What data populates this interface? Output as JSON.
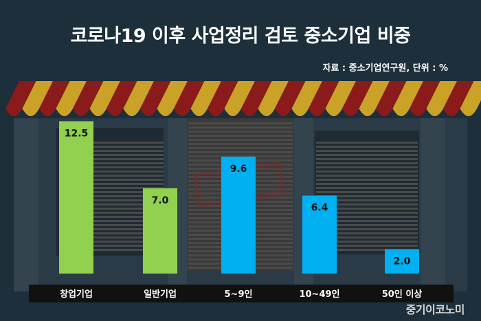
{
  "title": "코로나19 이후 사업정리 검토 중소기업 비중",
  "source_note": "자료 : 중소기업연구원, 단위 : %",
  "watermark": "중기이코노미",
  "colors": {
    "background": "#1c2f3b",
    "startup_bar": "#92d050",
    "size_bar": "#00b0f0",
    "awning_red": "#8b1a1a",
    "awning_gold": "#c9a227"
  },
  "chart_data": {
    "type": "bar",
    "title": "코로나19 이후 사업정리 검토 중소기업 비중",
    "xlabel": "",
    "ylabel": "",
    "unit": "%",
    "categories": [
      "창업기업",
      "일반기업",
      "5~9인",
      "10~49인",
      "50인 이상"
    ],
    "values": [
      12.5,
      7.0,
      9.6,
      6.4,
      2.0
    ],
    "value_labels": [
      "12.5",
      "7.0",
      "9.6",
      "6.4",
      "2.0"
    ],
    "bar_colors": [
      "#92d050",
      "#92d050",
      "#00b0f0",
      "#00b0f0",
      "#00b0f0"
    ],
    "ylim": [
      0,
      13.2
    ],
    "grid": false,
    "legend": "none"
  }
}
